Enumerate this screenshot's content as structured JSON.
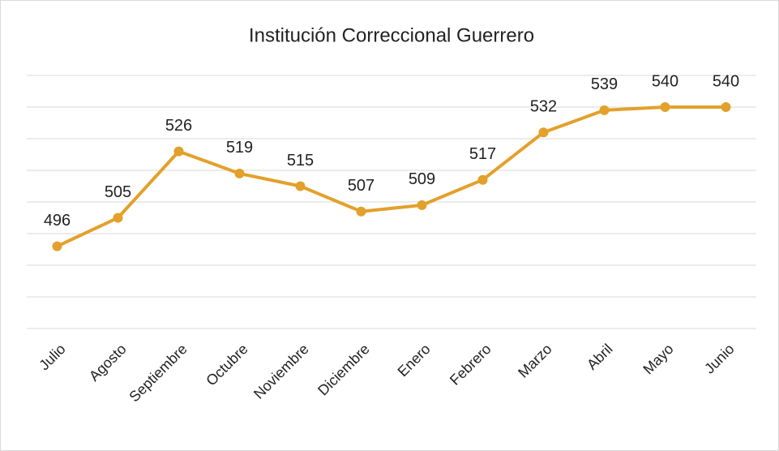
{
  "chart_data": {
    "type": "line",
    "title": "Institución Correccional Guerrero",
    "categories": [
      "Julio",
      "Agosto",
      "Septiembre",
      "Octubre",
      "Noviembre",
      "Diciembre",
      "Enero",
      "Febrero",
      "Marzo",
      "Abril",
      "Mayo",
      "Junio"
    ],
    "values": [
      496,
      505,
      526,
      519,
      515,
      507,
      509,
      517,
      532,
      539,
      540,
      540
    ],
    "color": "#e3a02b",
    "ylim": [
      470,
      550
    ],
    "yticks": [
      470,
      480,
      490,
      500,
      510,
      520,
      530,
      540,
      550
    ],
    "grid": true
  }
}
